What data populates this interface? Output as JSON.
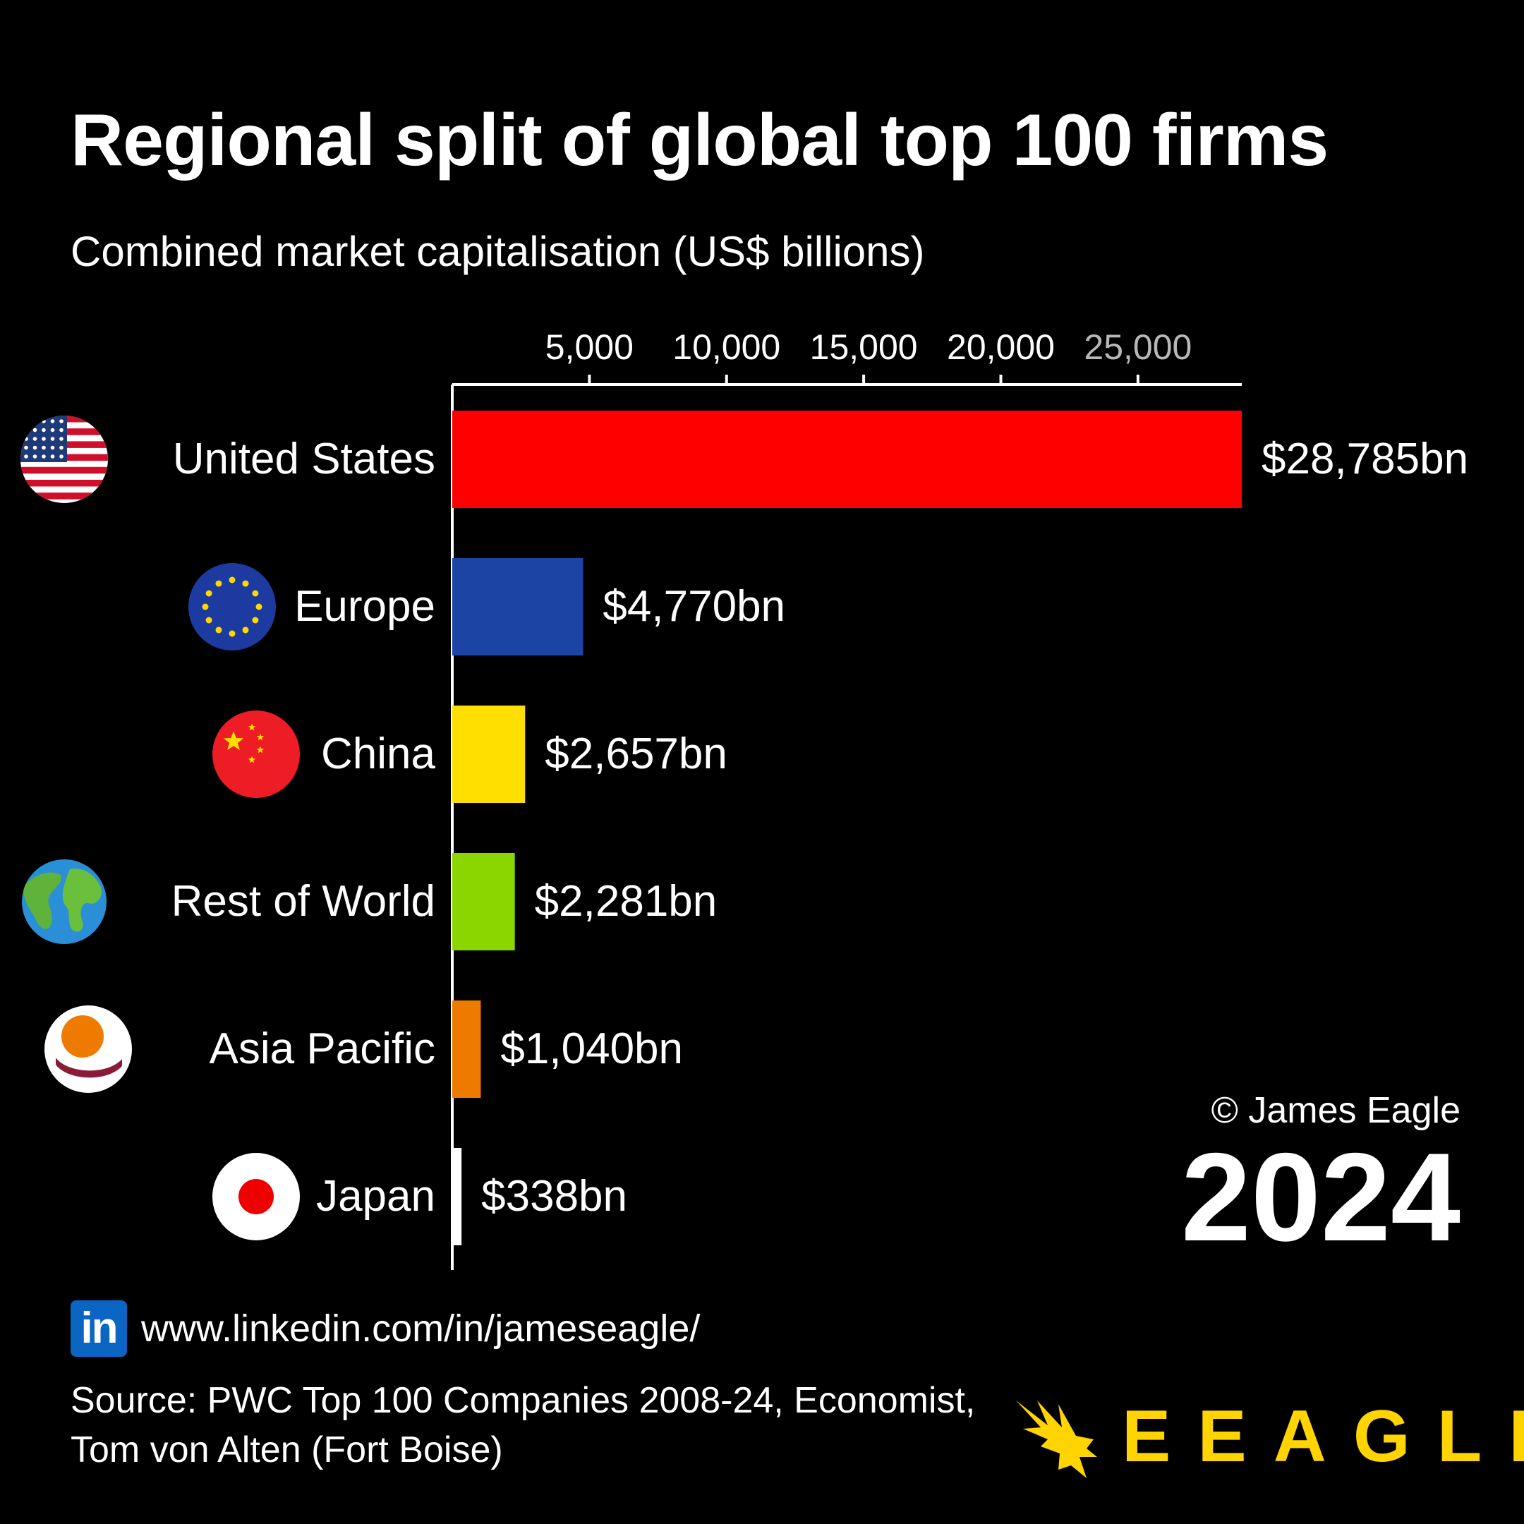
{
  "title": "Regional split of global top 100 firms",
  "subtitle": "Combined market capitalisation (US$ billions)",
  "copyright": "© James Eagle",
  "year": "2024",
  "linkedin": {
    "icon_text": "in",
    "url": "www.linkedin.com/in/jameseagle/"
  },
  "source_lines": [
    "Source: PWC Top 100 Companies 2008-24, Economist,",
    "Tom von Alten (Fort Boise)"
  ],
  "brand": "EEAGLI",
  "colors": {
    "background": "#000000",
    "text": "#ffffff",
    "brand": "#ffd400"
  },
  "chart_data": {
    "type": "bar",
    "orientation": "horizontal",
    "categories": [
      "United States",
      "Europe",
      "China",
      "Rest of World",
      "Asia Pacific",
      "Japan"
    ],
    "values": [
      28785,
      4770,
      2657,
      2281,
      1040,
      338
    ],
    "value_labels": [
      "$28,785bn",
      "$4,770bn",
      "$2,657bn",
      "$2,281bn",
      "$1,040bn",
      "$338bn"
    ],
    "colors": [
      "#ff0000",
      "#1c44a4",
      "#ffdf00",
      "#8cd600",
      "#ee7b00",
      "#ffffff"
    ],
    "icons": [
      "us-flag-icon",
      "eu-flag-icon",
      "china-flag-icon",
      "globe-icon",
      "asia-pacific-icon",
      "japan-flag-icon"
    ],
    "xticks": [
      5000,
      10000,
      15000,
      20000,
      25000
    ],
    "xtick_labels": [
      "5,000",
      "10,000",
      "15,000",
      "20,000",
      "25,000"
    ],
    "xlim": [
      0,
      28785
    ],
    "xaxis_position": "top"
  }
}
